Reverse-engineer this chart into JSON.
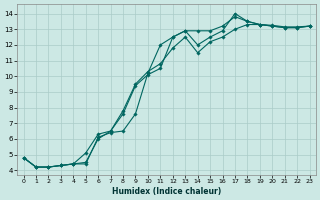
{
  "xlabel": "Humidex (Indice chaleur)",
  "ylabel": "",
  "bg_color": "#cce8e4",
  "grid_color": "#aaccc8",
  "line_color": "#006660",
  "xlim": [
    -0.5,
    23.5
  ],
  "ylim": [
    3.7,
    14.6
  ],
  "xticks": [
    0,
    1,
    2,
    3,
    4,
    5,
    6,
    7,
    8,
    9,
    10,
    11,
    12,
    13,
    14,
    15,
    16,
    17,
    18,
    19,
    20,
    21,
    22,
    23
  ],
  "yticks": [
    4,
    5,
    6,
    7,
    8,
    9,
    10,
    11,
    12,
    13,
    14
  ],
  "line1_y": [
    4.8,
    4.2,
    4.2,
    4.3,
    4.4,
    4.4,
    6.1,
    6.4,
    6.5,
    7.6,
    10.2,
    12.0,
    12.5,
    12.9,
    12.9,
    12.9,
    13.2,
    13.8,
    13.5,
    13.3,
    13.2,
    13.1,
    13.1,
    13.2
  ],
  "line2_y": [
    4.8,
    4.2,
    4.2,
    4.3,
    4.4,
    4.5,
    6.0,
    6.5,
    7.6,
    9.4,
    10.1,
    10.5,
    12.5,
    12.9,
    12.0,
    12.5,
    12.9,
    14.0,
    13.5,
    13.3,
    13.2,
    13.1,
    13.1,
    13.2
  ],
  "line3_y": [
    4.8,
    4.2,
    4.2,
    4.3,
    4.4,
    5.1,
    6.3,
    6.5,
    7.8,
    9.5,
    10.3,
    10.8,
    11.8,
    12.5,
    11.5,
    12.2,
    12.5,
    13.0,
    13.3,
    13.3,
    13.25,
    13.15,
    13.15,
    13.2
  ]
}
